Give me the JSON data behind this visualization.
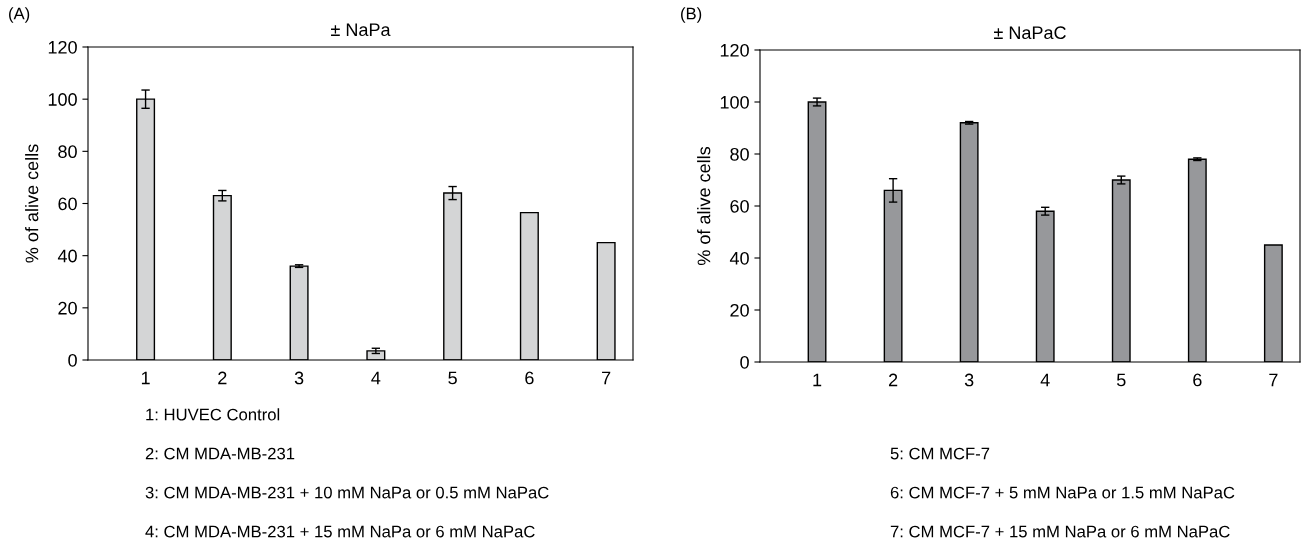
{
  "chart_data": [
    {
      "type": "bar",
      "title": "± NaPa",
      "ylabel": "% of alive cells",
      "categories": [
        "1",
        "2",
        "3",
        "4",
        "5",
        "6",
        "7"
      ],
      "series": [
        {
          "color": "#d4d5d6",
          "values": [
            100,
            63,
            36,
            3.5,
            64,
            56.5,
            45
          ],
          "errors": [
            3.5,
            2,
            0.5,
            1,
            2.5,
            null,
            null
          ]
        }
      ],
      "ylim": [
        0,
        120
      ],
      "yticks": [
        0,
        20,
        40,
        60,
        80,
        100,
        120
      ],
      "grid": false,
      "legend": false,
      "annotations": [
        "(A)",
        "1: HUVEC Control",
        "2: CM MDA-MB-231",
        "3: CM MDA-MB-231 + 10 mM NaPa or 0.5 mM NaPaC",
        "4: CM MDA-MB-231 + 15 mM NaPa or 6 mM NaPaC"
      ]
    },
    {
      "type": "bar",
      "title": "± NaPaC",
      "ylabel": "% of alive cells",
      "categories": [
        "1",
        "2",
        "3",
        "4",
        "5",
        "6",
        "7"
      ],
      "series": [
        {
          "color": "#97989b",
          "values": [
            100,
            66,
            92,
            58,
            70,
            78,
            45
          ],
          "errors": [
            1.5,
            4.5,
            0.5,
            1.5,
            1.5,
            0.5,
            null
          ]
        }
      ],
      "ylim": [
        0,
        120
      ],
      "yticks": [
        0,
        20,
        40,
        60,
        80,
        100,
        120
      ],
      "grid": false,
      "legend": false,
      "annotations": [
        "(B)",
        "5: CM MCF-7",
        "6: CM MCF-7 + 5 mM NaPa or 1.5 mM NaPaC",
        "7: CM MCF-7 + 15 mM NaPa or 6 mM NaPaC"
      ]
    }
  ]
}
